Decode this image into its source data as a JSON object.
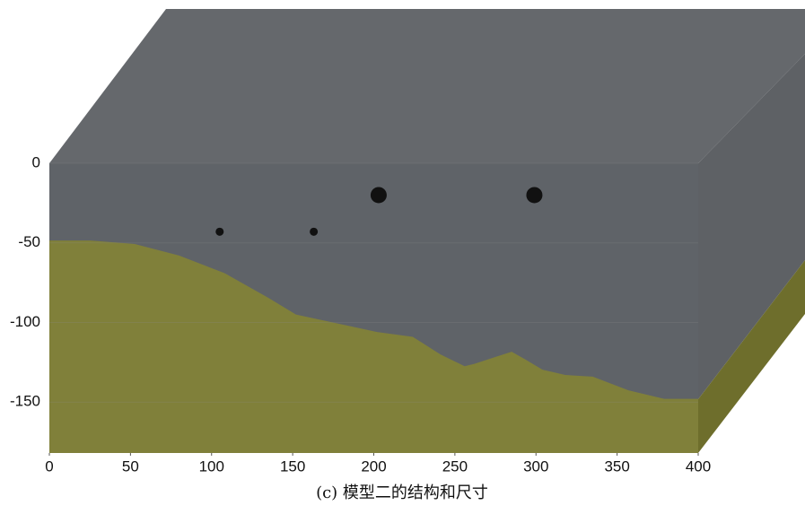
{
  "chart_data": [
    {
      "type": "area",
      "title": "(c) 模型二的结构和尺寸",
      "color": "#80803a",
      "x": [
        0,
        25,
        52.6,
        80,
        108,
        135,
        152,
        202,
        224,
        241,
        256,
        262,
        274,
        285,
        293,
        304,
        318,
        335,
        357,
        379,
        400
      ],
      "values": [
        -48.5,
        -48.5,
        -50.7,
        -58,
        -69,
        -84.5,
        -95,
        -106,
        -109,
        -120,
        -127.5,
        -126,
        -122,
        -118.4,
        -123,
        -129.7,
        -133,
        -134,
        -142.6,
        -148,
        -148
      ],
      "xlim": [
        0,
        400
      ],
      "ylim": [
        -182,
        0
      ],
      "xticks": [
        0,
        50,
        100,
        150,
        200,
        250,
        300,
        350,
        400
      ],
      "yticks": [
        0,
        -50,
        -100,
        -150
      ]
    },
    {
      "type": "scatter",
      "color": "#111111",
      "x": [
        203,
        299,
        105,
        163
      ],
      "values": [
        -20,
        -20,
        -43,
        -43
      ],
      "sizes": [
        10,
        10,
        5,
        5
      ]
    }
  ]
}
